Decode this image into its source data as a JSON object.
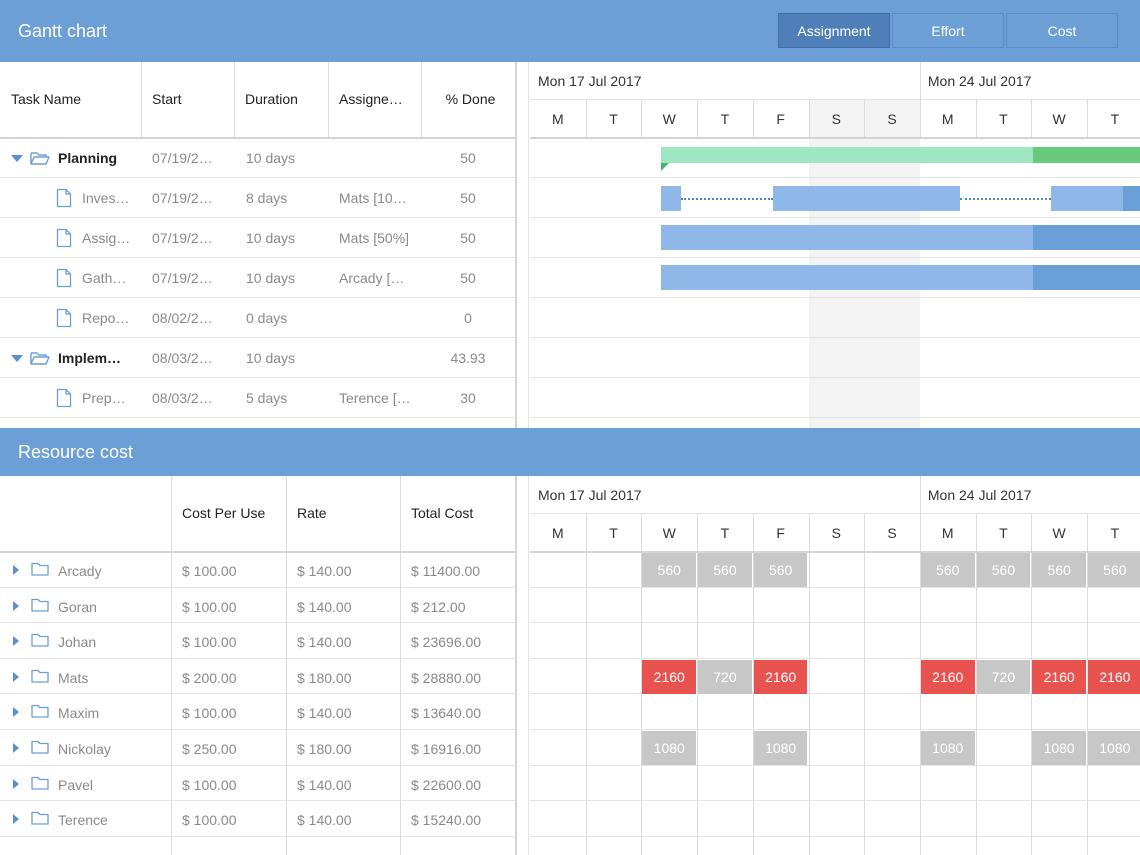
{
  "gantt": {
    "title": "Gantt chart",
    "view_buttons": [
      {
        "label": "Assignment",
        "active": true
      },
      {
        "label": "Effort",
        "active": false
      },
      {
        "label": "Cost",
        "active": false
      }
    ],
    "columns": [
      "Task Name",
      "Start",
      "Duration",
      "Assigne…",
      "% Done"
    ],
    "tasks": [
      {
        "name": "Planning",
        "start": "07/19/2…",
        "duration": "10 days",
        "assignee": "",
        "done": "50",
        "type": "folder"
      },
      {
        "name": "Inves…",
        "start": "07/19/2…",
        "duration": "8 days",
        "assignee": "Mats [10…",
        "done": "50",
        "type": "file"
      },
      {
        "name": "Assig…",
        "start": "07/19/2…",
        "duration": "10 days",
        "assignee": "Mats [50%]",
        "done": "50",
        "type": "file"
      },
      {
        "name": "Gath…",
        "start": "07/19/2…",
        "duration": "10 days",
        "assignee": "Arcady […",
        "done": "50",
        "type": "file"
      },
      {
        "name": "Repo…",
        "start": "08/02/2…",
        "duration": "0 days",
        "assignee": "",
        "done": "0",
        "type": "file"
      },
      {
        "name": "Implem…",
        "start": "08/03/2…",
        "duration": "10 days",
        "assignee": "",
        "done": "43.93",
        "type": "folder"
      },
      {
        "name": "Prep…",
        "start": "08/03/2…",
        "duration": "5 days",
        "assignee": "Terence […",
        "done": "30",
        "type": "file"
      }
    ],
    "weeks": [
      "Mon 17 Jul 2017",
      "Mon 24 Jul 2017"
    ],
    "days": [
      "M",
      "T",
      "W",
      "T",
      "F",
      "S",
      "S",
      "M",
      "T",
      "W",
      "T"
    ]
  },
  "resources": {
    "title": "Resource cost",
    "columns": [
      "",
      "Cost Per Use",
      "Rate",
      "Total Cost"
    ],
    "rows": [
      {
        "name": "Arcady",
        "cost_per_use": "$ 100.00",
        "rate": "$ 140.00",
        "total": "$ 11400.00",
        "cells": [
          "",
          "",
          "560",
          "560",
          "560",
          "",
          "",
          "560",
          "560",
          "560",
          "560"
        ]
      },
      {
        "name": "Goran",
        "cost_per_use": "$ 100.00",
        "rate": "$ 140.00",
        "total": "$ 212.00",
        "cells": [
          "",
          "",
          "",
          "",
          "",
          "",
          "",
          "",
          "",
          "",
          ""
        ]
      },
      {
        "name": "Johan",
        "cost_per_use": "$ 100.00",
        "rate": "$ 140.00",
        "total": "$ 23696.00",
        "cells": [
          "",
          "",
          "",
          "",
          "",
          "",
          "",
          "",
          "",
          "",
          ""
        ]
      },
      {
        "name": "Mats",
        "cost_per_use": "$ 200.00",
        "rate": "$ 180.00",
        "total": "$ 28880.00",
        "cells": [
          "",
          "",
          "2160",
          "720",
          "2160",
          "",
          "",
          "2160",
          "720",
          "2160",
          "2160"
        ]
      },
      {
        "name": "Maxim",
        "cost_per_use": "$ 100.00",
        "rate": "$ 140.00",
        "total": "$ 13640.00",
        "cells": [
          "",
          "",
          "",
          "",
          "",
          "",
          "",
          "",
          "",
          "",
          ""
        ]
      },
      {
        "name": "Nickolay",
        "cost_per_use": "$ 250.00",
        "rate": "$ 180.00",
        "total": "$ 16916.00",
        "cells": [
          "",
          "",
          "1080",
          "",
          "1080",
          "",
          "",
          "1080",
          "",
          "1080",
          "1080"
        ]
      },
      {
        "name": "Pavel",
        "cost_per_use": "$ 100.00",
        "rate": "$ 140.00",
        "total": "$ 22600.00",
        "cells": [
          "",
          "",
          "",
          "",
          "",
          "",
          "",
          "",
          "",
          "",
          ""
        ]
      },
      {
        "name": "Terence",
        "cost_per_use": "$ 100.00",
        "rate": "$ 140.00",
        "total": "$ 15240.00",
        "cells": [
          "",
          "",
          "",
          "",
          "",
          "",
          "",
          "",
          "",
          "",
          ""
        ]
      }
    ],
    "weeks": [
      "Mon 17 Jul 2017",
      "Mon 24 Jul 2017"
    ],
    "days": [
      "M",
      "T",
      "W",
      "T",
      "F",
      "S",
      "S",
      "M",
      "T",
      "W",
      "T"
    ]
  },
  "colors": {
    "header": "#6c9fd6",
    "summary_bar": "#9fe6c2",
    "summary_done": "#66c97b",
    "task_bar": "#8fb8e8",
    "task_done": "#6a9fd8",
    "cost_normal": "#c7c7c7",
    "cost_over": "#e8534f"
  }
}
